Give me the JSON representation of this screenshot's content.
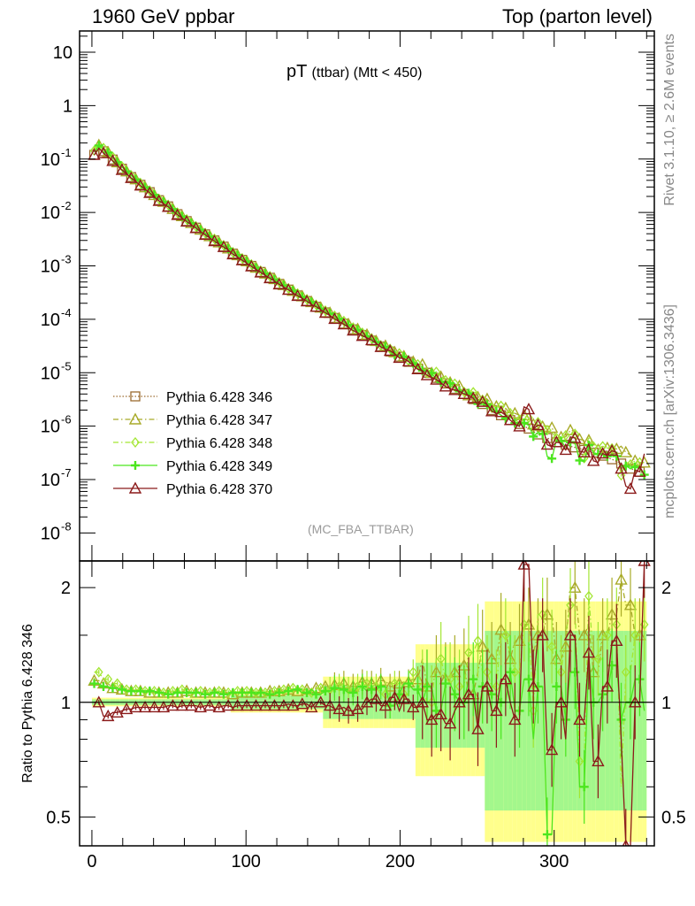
{
  "header": {
    "left": "1960 GeV ppbar",
    "right": "Top (parton level)"
  },
  "title": {
    "main": "pT",
    "sub": "(ttbar) (Mtt < 450)"
  },
  "watermark": "(MC_FBA_TTBAR)",
  "side_text": {
    "rivet": "Rivet 3.1.10, ≥ 2.6M events",
    "mcplots": "mcplots.cern.ch [arXiv:1306.3436]"
  },
  "ratio_ylabel": "Ratio to Pythia 6.428 346",
  "colors": {
    "s346": "#9a6b2f",
    "s347": "#a8aa28",
    "s348": "#a3e632",
    "s349": "#4ce61e",
    "s370": "#8b1a1a",
    "band_yellow": "#ffff80",
    "band_green": "#8cf58c"
  },
  "chart_data": [
    {
      "type": "scatter",
      "yscale": "log",
      "xlim": [
        -8,
        365
      ],
      "ylim": [
        3e-09,
        25
      ],
      "ytick_labels": [
        "10",
        "1",
        "10-1",
        "10-2",
        "10-3",
        "10-4",
        "10-5",
        "10-6",
        "10-7",
        "10-8"
      ],
      "legend_position": "bottom-left",
      "x_step": 3,
      "x_start": 1.5,
      "series": [
        {
          "name": "Pythia 6.428 346",
          "marker": "square-open",
          "line": "dotted",
          "values": [
            0.12,
            0.16,
            0.14,
            0.12,
            0.098,
            0.08,
            0.066,
            0.055,
            0.046,
            0.039,
            0.033,
            0.028,
            0.024,
            0.02,
            0.017,
            0.015,
            0.013,
            0.011,
            0.0093,
            0.008,
            0.0069,
            0.006,
            0.0052,
            0.0045,
            0.0039,
            0.0034,
            0.003,
            0.0026,
            0.0023,
            0.002,
            0.0017,
            0.0015,
            0.0013,
            0.00115,
            0.001,
            0.00088,
            0.00077,
            0.00068,
            0.0006,
            0.00053,
            0.00046,
            0.00041,
            0.00036,
            0.00032,
            0.00028,
            0.00025,
            0.00022,
            0.000195,
            0.000172,
            0.000152,
            0.000135,
            0.00012,
            0.000106,
            9.4e-05,
            8.3e-05,
            7.4e-05,
            6.5e-05,
            5.8e-05,
            5.1e-05,
            4.5e-05,
            4e-05,
            3.5e-05,
            3.1e-05,
            2.8e-05,
            2.5e-05,
            2.2e-05,
            2e-05,
            1.8e-05,
            1.6e-05,
            1.4e-05,
            1.2e-05,
            1.1e-05,
            1e-05,
            9e-06,
            8e-06,
            7e-06,
            6.3e-06,
            5.7e-06,
            5e-06,
            4.5e-06,
            4e-06,
            3.6e-06,
            3.2e-06,
            2.9e-06,
            2.6e-06,
            2.3e-06,
            2e-06,
            1.8e-06,
            1.6e-06,
            1.4e-06,
            1.3e-06,
            1.2e-06,
            1.1e-06,
            1e-06,
            9e-07,
            8e-07,
            7e-07,
            6.5e-07,
            6e-07,
            5.5e-07,
            5e-07,
            4.8e-07,
            4.5e-07,
            4.2e-07,
            4e-07,
            3.8e-07,
            3.6e-07,
            3.4e-07,
            3.2e-07,
            3e-07,
            2.8e-07,
            2.6e-07,
            2.4e-07,
            2.2e-07,
            2e-07,
            1.8e-07,
            1.6e-07,
            1.5e-07,
            1.4e-07,
            1.3e-07
          ]
        },
        {
          "name": "Pythia 6.428 347",
          "marker": "triangle-open",
          "line": "dashdot"
        },
        {
          "name": "Pythia 6.428 348",
          "marker": "diamond-open",
          "line": "dashdot"
        },
        {
          "name": "Pythia 6.428 349",
          "marker": "cross",
          "line": "solid"
        },
        {
          "name": "Pythia 6.428 370",
          "marker": "triangle-open",
          "line": "solid"
        }
      ],
      "ratio_to_346": {
        "s347": [
          1.14,
          1.12,
          1.09,
          1.08,
          1.07,
          1.07,
          1.06,
          1.06,
          1.06,
          1.06,
          1.06,
          1.07,
          1.06,
          1.06,
          1.06,
          1.06,
          1.06,
          1.05,
          1.06,
          1.06,
          1.05,
          1.06,
          1.07,
          1.07,
          1.08,
          1.07,
          1.08,
          1.08,
          1.09,
          1.1,
          1.11,
          1.12,
          1.1,
          1.13,
          1.15,
          1.12,
          1.14,
          1.1,
          1.12,
          1.13,
          1.15,
          1.3,
          1.1,
          1.2,
          1.15,
          1.2,
          1.25,
          1.05,
          1.2,
          1.4,
          1.3,
          1.55,
          1.3,
          1.45,
          1.6,
          1.35,
          1.5,
          1.7,
          1.3,
          1.4,
          2.0,
          1.5,
          1.6,
          1.2,
          1.5,
          1.7,
          2.1,
          1.8,
          1.5,
          1.6
        ],
        "s348": [
          1.2,
          1.15,
          1.12,
          1.1,
          1.08,
          1.08,
          1.07,
          1.07,
          1.06,
          1.07,
          1.07,
          1.08,
          1.06,
          1.07,
          1.06,
          1.07,
          1.06,
          1.06,
          1.07,
          1.07,
          1.06,
          1.06,
          1.07,
          1.08,
          1.06,
          1.09,
          1.08,
          1.06,
          1.09,
          1.08,
          1.1,
          1.12,
          1.08,
          1.1,
          1.12,
          1.1,
          1.05,
          1.12,
          1.15,
          1.05,
          1.2,
          1.1,
          1.0,
          1.3,
          1.15,
          1.25,
          1.1,
          1.35,
          1.45,
          1.2,
          1.1,
          1.5,
          1.35,
          1.2,
          1.6,
          0.95,
          1.7,
          1.4,
          1.2,
          1.5,
          1.8,
          0.7,
          1.9,
          1.3,
          1.5,
          1.6,
          0.6,
          1.2,
          1.5,
          1.6
        ],
        "s349": [
          1.12,
          1.1,
          1.09,
          1.08,
          1.07,
          1.07,
          1.06,
          1.07,
          1.06,
          1.05,
          1.06,
          1.06,
          1.06,
          1.06,
          1.05,
          1.06,
          1.05,
          1.06,
          1.06,
          1.06,
          1.05,
          1.06,
          1.05,
          1.06,
          1.07,
          1.08,
          1.06,
          1.08,
          1.05,
          1.07,
          1.09,
          1.08,
          1.06,
          1.1,
          1.07,
          1.08,
          1.1,
          0.98,
          1.05,
          1.12,
          1.08,
          1.0,
          1.1,
          0.95,
          1.12,
          1.05,
          1.0,
          1.15,
          0.9,
          1.1,
          1.05,
          1.0,
          1.2,
          0.95,
          1.15,
          0.8,
          1.1,
          0.45,
          1.1,
          0.9,
          1.2,
          0.6,
          1.3,
          1.0,
          1.05,
          1.25,
          0.9,
          1.0,
          1.15,
          0.95
        ],
        "s370": [
          1.0,
          0.92,
          0.94,
          0.95,
          0.96,
          0.97,
          0.97,
          0.97,
          0.97,
          0.98,
          0.97,
          0.98,
          0.98,
          0.97,
          0.98,
          0.97,
          0.98,
          0.97,
          0.98,
          0.98,
          0.98,
          0.98,
          0.98,
          0.98,
          0.99,
          0.98,
          0.99,
          0.97,
          1.0,
          0.98,
          0.96,
          0.97,
          0.95,
          0.96,
          1.0,
          1.02,
          0.98,
          1.03,
          0.95,
          1.02,
          0.97,
          1.0,
          0.9,
          0.93,
          0.88,
          0.95,
          1.0,
          1.05,
          0.85,
          1.1,
          0.95,
          1.15,
          1.0,
          0.9,
          2.3,
          1.1,
          1.5,
          0.75,
          1.0,
          0.8,
          1.5,
          0.9,
          1.35,
          0.7,
          1.1,
          1.45,
          0.8,
          0.42,
          1.0,
          2.35
        ]
      },
      "ratio_ylim": [
        0.42,
        2.35
      ],
      "ratio_ytick_labels": [
        "0.5",
        "1",
        "2"
      ],
      "xtick_labels": [
        "0",
        "100",
        "200",
        "300"
      ]
    }
  ]
}
